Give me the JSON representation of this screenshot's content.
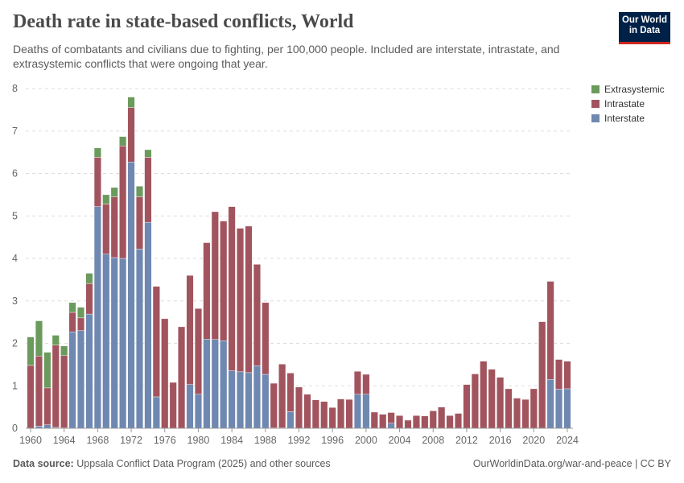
{
  "title": "Death rate in state-based conflicts, World",
  "subtitle": "Deaths of combatants and civilians due to fighting, per 100,000 people. Included are interstate, intrastate, and extrasystemic conflicts that were ongoing that year.",
  "logo": {
    "line1": "Our World",
    "line2": "in Data"
  },
  "footer": {
    "source_label": "Data source:",
    "source": "Uppsala Conflict Data Program (2025) and other sources",
    "link": "OurWorldinData.org/war-and-peace | CC BY"
  },
  "chart_data": {
    "type": "bar",
    "stacked": true,
    "ylim": [
      0,
      8
    ],
    "yticks": [
      "0",
      "1",
      "2",
      "3",
      "4",
      "5",
      "6",
      "7",
      "8"
    ],
    "xticks": [
      "1960",
      "1964",
      "1968",
      "1972",
      "1976",
      "1980",
      "1984",
      "1988",
      "1992",
      "1996",
      "2000",
      "2004",
      "2008",
      "2012",
      "2016",
      "2020",
      "2024"
    ],
    "grid": true,
    "legend_position": "right",
    "categories": [
      1960,
      1961,
      1962,
      1963,
      1964,
      1965,
      1966,
      1967,
      1968,
      1969,
      1970,
      1971,
      1972,
      1973,
      1974,
      1975,
      1976,
      1977,
      1978,
      1979,
      1980,
      1981,
      1982,
      1983,
      1984,
      1985,
      1986,
      1987,
      1988,
      1989,
      1990,
      1991,
      1992,
      1993,
      1994,
      1995,
      1996,
      1997,
      1998,
      1999,
      2000,
      2001,
      2002,
      2003,
      2004,
      2005,
      2006,
      2007,
      2008,
      2009,
      2010,
      2011,
      2012,
      2013,
      2014,
      2015,
      2016,
      2017,
      2018,
      2019,
      2020,
      2021,
      2022,
      2023,
      2024
    ],
    "series": [
      {
        "name": "Interstate",
        "color": "#6f88b1",
        "values": [
          0,
          0.05,
          0.08,
          0.02,
          0.01,
          2.27,
          2.3,
          2.69,
          5.22,
          4.1,
          4.02,
          4.0,
          6.27,
          4.22,
          4.85,
          0.74,
          0,
          0,
          0,
          1.03,
          0.8,
          2.1,
          2.09,
          2.06,
          1.36,
          1.33,
          1.31,
          1.47,
          1.27,
          0.01,
          0.01,
          0.39,
          0,
          0,
          0,
          0,
          0,
          0,
          0,
          0.8,
          0.8,
          0,
          0,
          0.12,
          0,
          0,
          0,
          0,
          0,
          0,
          0,
          0,
          0,
          0,
          0,
          0,
          0,
          0,
          0,
          0,
          0,
          0,
          1.15,
          0.92,
          0.93
        ]
      },
      {
        "name": "Intrastate",
        "color": "#a2545e",
        "values": [
          1.48,
          1.65,
          0.87,
          1.94,
          1.7,
          0.46,
          0.3,
          0.72,
          1.16,
          1.18,
          1.43,
          2.65,
          1.28,
          1.23,
          1.53,
          2.6,
          2.58,
          1.08,
          2.39,
          2.57,
          2.02,
          2.27,
          3.01,
          2.82,
          3.86,
          3.38,
          3.45,
          2.39,
          1.69,
          1.05,
          1.5,
          0.91,
          0.97,
          0.8,
          0.67,
          0.63,
          0.49,
          0.69,
          0.68,
          0.54,
          0.47,
          0.38,
          0.33,
          0.25,
          0.3,
          0.19,
          0.3,
          0.29,
          0.41,
          0.5,
          0.3,
          0.35,
          1.03,
          1.28,
          1.58,
          1.39,
          1.2,
          0.93,
          0.71,
          0.68,
          0.93,
          2.51,
          2.31,
          0.7,
          0.65
        ]
      },
      {
        "name": "Extrasystemic",
        "color": "#6b9a5d",
        "values": [
          0.67,
          0.83,
          0.84,
          0.23,
          0.23,
          0.23,
          0.25,
          0.24,
          0.22,
          0.22,
          0.22,
          0.22,
          0.25,
          0.25,
          0.18,
          0,
          0,
          0,
          0,
          0,
          0,
          0,
          0,
          0,
          0,
          0,
          0,
          0,
          0,
          0,
          0,
          0,
          0,
          0,
          0,
          0,
          0,
          0,
          0,
          0,
          0,
          0,
          0,
          0,
          0,
          0,
          0,
          0,
          0,
          0,
          0,
          0,
          0,
          0,
          0,
          0,
          0,
          0,
          0,
          0,
          0,
          0,
          0,
          0,
          0
        ]
      }
    ]
  }
}
